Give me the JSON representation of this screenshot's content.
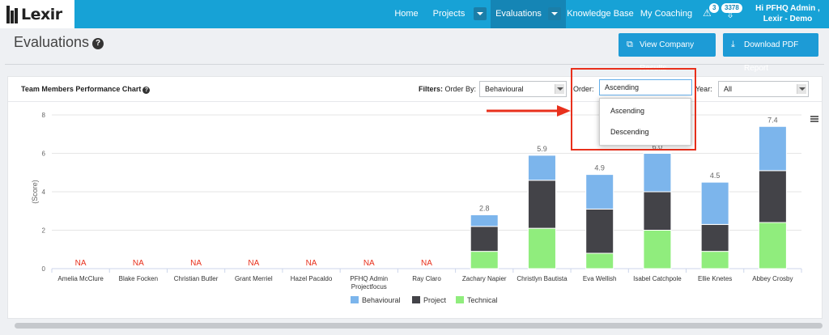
{
  "app": {
    "logo_text": "Lexir"
  },
  "nav": {
    "items": [
      {
        "label": "Home"
      },
      {
        "label": "Projects"
      },
      {
        "label": "Evaluations"
      },
      {
        "label": "Knowledge Base"
      },
      {
        "label": "My Coaching"
      }
    ],
    "alerts_count": "3",
    "notifications_count": "3378",
    "user_greeting_line1": "Hi PFHQ Admin ,",
    "user_greeting_line2": "Lexir - Demo"
  },
  "page": {
    "title": "Evaluations",
    "help_icon": "question-circle-icon",
    "view_company_results_label": "View Company Results",
    "download_pdf_label": "Download PDF Report"
  },
  "panel": {
    "title": "Team Members Performance Chart",
    "filters_label": "Filters:",
    "order_by_label": "Order By:",
    "order_by_value": "Behavioural",
    "order_label": "Order:",
    "order_value": "Ascending",
    "year_label": "Year:",
    "year_value": "All",
    "order_options": [
      "Ascending",
      "Descending"
    ]
  },
  "colors": {
    "nav_bg": "#17a2d6",
    "behavioural": "#7cb5ec",
    "project": "#434348",
    "technical": "#90ed7d",
    "na_text": "#e8301c",
    "highlight": "#e8301c"
  },
  "chart_data": {
    "type": "bar",
    "stacked": true,
    "ylabel": "(Score)",
    "ylim": [
      0,
      8
    ],
    "yticks": [
      0,
      2,
      4,
      6,
      8
    ],
    "grid": true,
    "legend_position": "bottom-center",
    "categories": [
      "Amelia McClure",
      "Blake Focken",
      "Christian Butler",
      "Grant Merriel",
      "Hazel Pacaldo",
      "PFHQ Admin Projectfocus",
      "Ray Claro",
      "Zachary Napier",
      "Christlyn Bautista",
      "Eva Wellish",
      "Isabel Catchpole",
      "Ellie Knetes",
      "Abbey Crosby"
    ],
    "category_lines": [
      [
        "Amelia McClure"
      ],
      [
        "Blake Focken"
      ],
      [
        "Christian Butler"
      ],
      [
        "Grant Merriel"
      ],
      [
        "Hazel Pacaldo"
      ],
      [
        "PFHQ Admin",
        "Projectfocus"
      ],
      [
        "Ray Claro"
      ],
      [
        "Zachary Napier"
      ],
      [
        "Christlyn Bautista"
      ],
      [
        "Eva Wellish"
      ],
      [
        "Isabel Catchpole"
      ],
      [
        "Ellie Knetes"
      ],
      [
        "Abbey Crosby"
      ]
    ],
    "series": [
      {
        "name": "Technical",
        "values": [
          null,
          null,
          null,
          null,
          null,
          null,
          null,
          0.9,
          2.1,
          0.8,
          2.0,
          0.9,
          2.4
        ]
      },
      {
        "name": "Project",
        "values": [
          null,
          null,
          null,
          null,
          null,
          null,
          null,
          1.3,
          2.5,
          2.3,
          2.0,
          1.4,
          2.7
        ]
      },
      {
        "name": "Behavioural",
        "values": [
          null,
          null,
          null,
          null,
          null,
          null,
          null,
          0.6,
          1.3,
          1.8,
          2.0,
          2.2,
          2.3
        ]
      }
    ],
    "totals": [
      "NA",
      "NA",
      "NA",
      "NA",
      "NA",
      "NA",
      "NA",
      "2.8",
      "5.9",
      "4.9",
      "6.0",
      "4.5",
      "7.4"
    ],
    "legend": [
      "Behavioural",
      "Project",
      "Technical"
    ]
  }
}
